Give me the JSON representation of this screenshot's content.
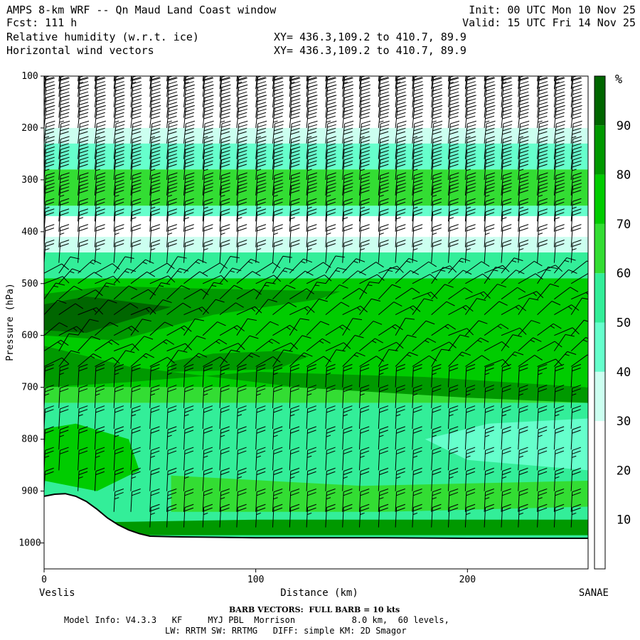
{
  "header": {
    "title": "AMPS 8-km WRF -- Qn Maud Land Coast window",
    "fcst": "Fcst: 111 h",
    "field1": "Relative humidity (w.r.t. ice)",
    "field2": "Horizontal wind vectors",
    "xy1": "XY= 436.3,109.2 to 410.7, 89.9",
    "xy2": "XY= 436.3,109.2 to 410.7, 89.9",
    "init": "Init: 00 UTC Mon 10 Nov 25",
    "valid": "Valid: 15 UTC Fri 14 Nov 25"
  },
  "footer": {
    "barb_note": "BARB VECTORS:  FULL BARB = 10 kts",
    "model_line1": "Model Info: V4.3.3   KF     MYJ PBL  Morrison           8.0 km,  60 levels,",
    "model_line2": "LW: RRTM SW: RRTMG   DIFF: simple KM: 2D Smagor"
  },
  "chart_data": {
    "type": "cross-section contour with wind barbs",
    "title": "Relative humidity (w.r.t. ice), Horizontal wind vectors",
    "xlabel": "Distance (km)",
    "ylabel": "Pressure (hPa)",
    "xlim": [
      0,
      257
    ],
    "ylim": [
      1050,
      100
    ],
    "x_ticks": [
      0,
      100,
      200
    ],
    "y_ticks": [
      100,
      200,
      300,
      400,
      500,
      600,
      700,
      800,
      900,
      1000
    ],
    "x_endpoint_labels": [
      "Veslis",
      "SANAE"
    ],
    "colorbar": {
      "unit": "%",
      "levels": [
        10,
        20,
        30,
        40,
        50,
        60,
        70,
        80,
        90
      ],
      "colors": [
        "#ffffff",
        "#ffffff",
        "#ffffff",
        "#ccfff0",
        "#66ffcc",
        "#33ee99",
        "#33dd33",
        "#00cc00",
        "#009900",
        "#006600"
      ]
    },
    "rh_layers": [
      {
        "p_top": 100,
        "p_bot": 200,
        "rh": 15
      },
      {
        "p_top": 200,
        "p_bot": 230,
        "rh": 35
      },
      {
        "p_top": 230,
        "p_bot": 280,
        "rh": 45
      },
      {
        "p_top": 280,
        "p_bot": 350,
        "rh": 65
      },
      {
        "p_top": 350,
        "p_bot": 370,
        "rh": 40
      },
      {
        "p_top": 370,
        "p_bot": 410,
        "rh": 25
      },
      {
        "p_top": 410,
        "p_bot": 440,
        "rh": 35
      },
      {
        "p_top": 440,
        "p_bot": 490,
        "rh": 55
      },
      {
        "p_top": 490,
        "p_bot": 700,
        "rh": 72
      },
      {
        "p_top": 700,
        "p_bot": 730,
        "rh": 65
      },
      {
        "p_top": 730,
        "p_bot": 1000,
        "rh": 55
      }
    ],
    "rh_patches": [
      {
        "x": [
          0,
          0,
          35,
          80,
          130,
          140,
          80,
          30,
          0
        ],
        "p": [
          520,
          600,
          610,
          560,
          530,
          515,
          510,
          505,
          520
        ],
        "rh": 85
      },
      {
        "x": [
          0,
          0,
          20,
          40,
          60,
          20
        ],
        "p": [
          540,
          590,
          595,
          570,
          545,
          525
        ],
        "rh": 95
      },
      {
        "x": [
          60,
          60,
          110,
          125,
          110,
          80
        ],
        "p": [
          650,
          670,
          665,
          640,
          630,
          635
        ],
        "rh": 85
      },
      {
        "x": [
          0,
          0,
          40,
          100,
          180,
          257,
          257,
          200,
          120,
          40
        ],
        "p": [
          620,
          700,
          690,
          670,
          680,
          700,
          730,
          720,
          700,
          660
        ],
        "rh": 80
      },
      {
        "x": [
          0,
          0,
          25,
          45,
          40,
          15
        ],
        "p": [
          780,
          880,
          900,
          860,
          800,
          770
        ],
        "rh": 72
      },
      {
        "x": [
          60,
          60,
          160,
          257,
          257,
          150
        ],
        "p": [
          870,
          940,
          940,
          930,
          880,
          890
        ],
        "rh": 68
      },
      {
        "x": [
          180,
          200,
          257,
          257,
          210
        ],
        "p": [
          800,
          840,
          860,
          760,
          770
        ],
        "rh": 45
      },
      {
        "x": [
          30,
          30,
          257,
          257,
          100
        ],
        "p": [
          960,
          985,
          985,
          955,
          955
        ],
        "rh": 80
      }
    ],
    "terrain": {
      "x": [
        0,
        5,
        10,
        15,
        20,
        25,
        30,
        35,
        40,
        45,
        50,
        60,
        80,
        100,
        130,
        160,
        200,
        257
      ],
      "p": [
        910,
        906,
        905,
        910,
        920,
        935,
        952,
        965,
        975,
        982,
        987,
        988,
        989,
        990,
        990,
        990,
        991,
        991
      ]
    },
    "wind_barbs": {
      "x_columns": [
        0,
        7,
        16,
        24,
        33,
        41,
        50,
        58,
        66,
        75,
        83,
        91,
        100,
        108,
        116,
        124,
        133,
        141,
        149,
        158,
        166,
        174,
        183,
        191,
        199,
        208,
        216,
        224,
        233,
        241,
        249
      ],
      "levels": [
        110,
        125,
        140,
        160,
        180,
        200,
        230,
        260,
        280,
        300,
        330,
        350,
        380,
        400,
        430,
        460,
        480,
        500,
        530,
        560,
        600,
        630,
        660,
        700,
        740,
        780,
        820,
        860,
        900,
        940,
        970
      ],
      "note": "upper levels strong westerlies (4-5 full barbs), weakening below 400 hPa, 1-2 barbs in lower troposphere"
    }
  }
}
